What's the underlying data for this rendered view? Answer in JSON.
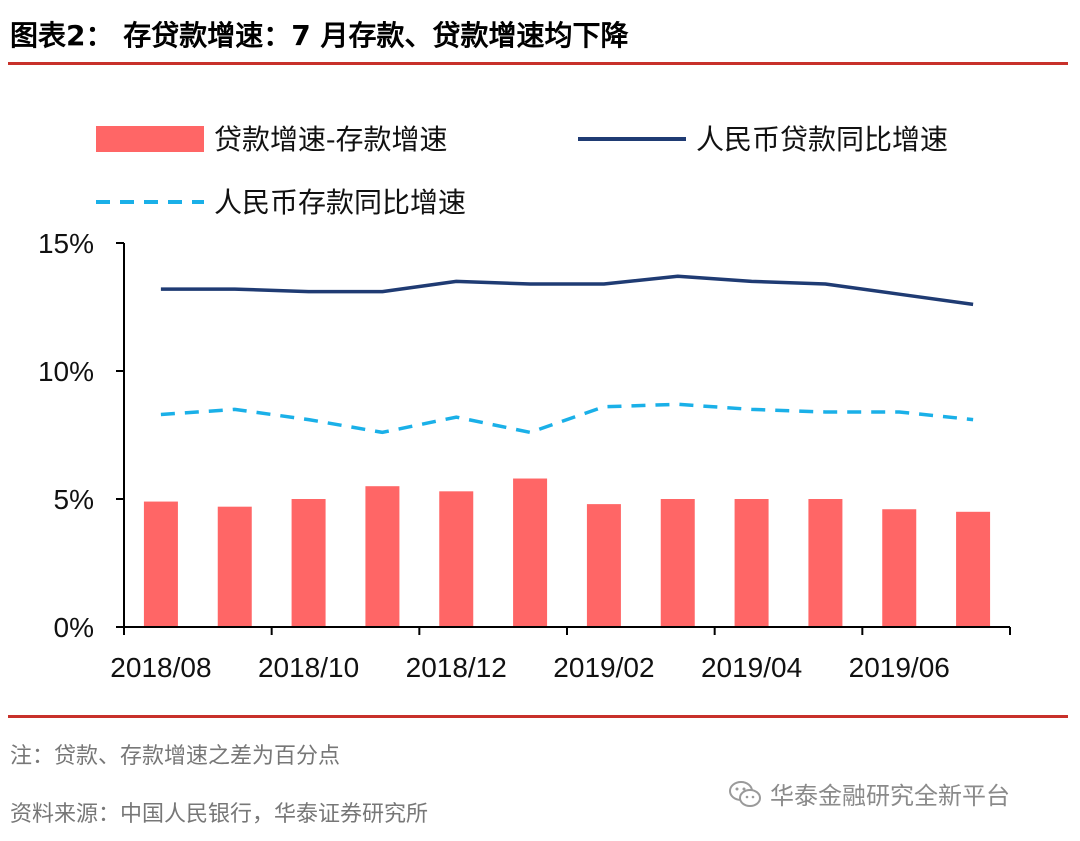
{
  "title": "图表2： 存贷款增速：7 月存款、贷款增速均下降",
  "note": "注：贷款、存款增速之差为百分点",
  "source": "资料来源：中国人民银行，华泰证券研究所",
  "watermark": "华泰金融研究全新平台",
  "colors": {
    "accent_rule": "#c8312a",
    "bar": "#ff6666",
    "loan_line": "#1f3b73",
    "deposit_line": "#1ab0e8"
  },
  "chart_data": {
    "type": "bar",
    "title": "",
    "xlabel": "",
    "ylabel": "",
    "ylim": [
      0,
      15
    ],
    "y_ticks": [
      "0%",
      "5%",
      "10%",
      "15%"
    ],
    "x_tick_labels": [
      "2018/08",
      "2018/10",
      "2018/12",
      "2019/02",
      "2019/04",
      "2019/06"
    ],
    "categories": [
      "2018/08",
      "2018/09",
      "2018/10",
      "2018/11",
      "2018/12",
      "2019/01",
      "2019/02",
      "2019/03",
      "2019/04",
      "2019/05",
      "2019/06",
      "2019/07"
    ],
    "legend_position": "top",
    "grid": false,
    "series": [
      {
        "name": "贷款增速-存款增速",
        "kind": "bar",
        "values": [
          4.9,
          4.7,
          5.0,
          5.5,
          5.3,
          5.8,
          4.8,
          5.0,
          5.0,
          5.0,
          4.6,
          4.5
        ]
      },
      {
        "name": "人民币贷款同比增速",
        "kind": "line",
        "style": "solid",
        "values": [
          13.2,
          13.2,
          13.1,
          13.1,
          13.5,
          13.4,
          13.4,
          13.7,
          13.5,
          13.4,
          13.0,
          12.6
        ]
      },
      {
        "name": "人民币存款同比增速",
        "kind": "line",
        "style": "dashed",
        "values": [
          8.3,
          8.5,
          8.1,
          7.6,
          8.2,
          7.6,
          8.6,
          8.7,
          8.5,
          8.4,
          8.4,
          8.1
        ]
      }
    ]
  }
}
